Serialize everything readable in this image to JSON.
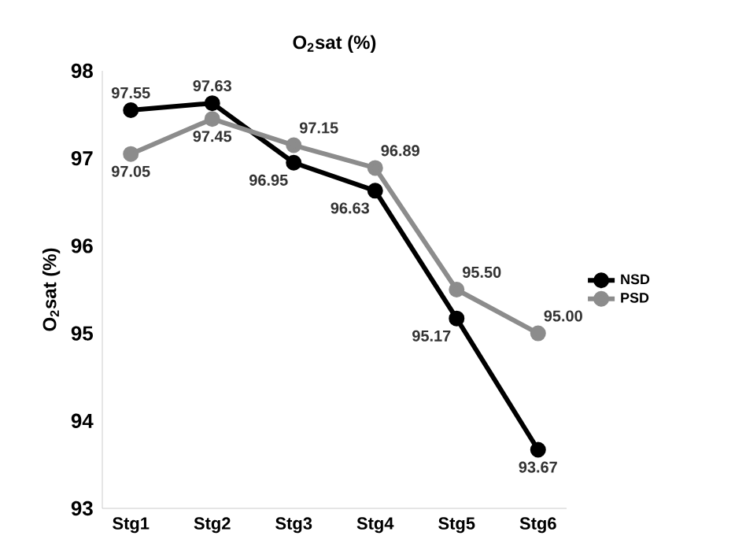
{
  "chart_data": {
    "type": "line",
    "title": "O$_{2}$sat (%)",
    "ylabel": "O$_{2}$sat (%)",
    "categories": [
      "Stg1",
      "Stg2",
      "Stg3",
      "Stg4",
      "Stg5",
      "Stg6"
    ],
    "series": [
      {
        "name": "NSD",
        "color": "#000000",
        "values": [
          97.55,
          97.63,
          96.95,
          96.63,
          95.17,
          93.67
        ],
        "value_labels": [
          "97.55",
          "97.63",
          "96.95",
          "96.63",
          "95.17",
          "93.67"
        ]
      },
      {
        "name": "PSD",
        "color": "#8c8c8c",
        "values": [
          97.05,
          97.45,
          97.15,
          96.89,
          95.5,
          95.0
        ],
        "value_labels": [
          "97.05",
          "97.45",
          "97.15",
          "96.89",
          "95.50",
          "95.00"
        ]
      }
    ],
    "ylim": [
      93,
      98
    ],
    "yticks": [
      93,
      94,
      95,
      96,
      97,
      98
    ],
    "legend": "right",
    "marker": "circle",
    "line_style": "solid",
    "grid": false
  }
}
